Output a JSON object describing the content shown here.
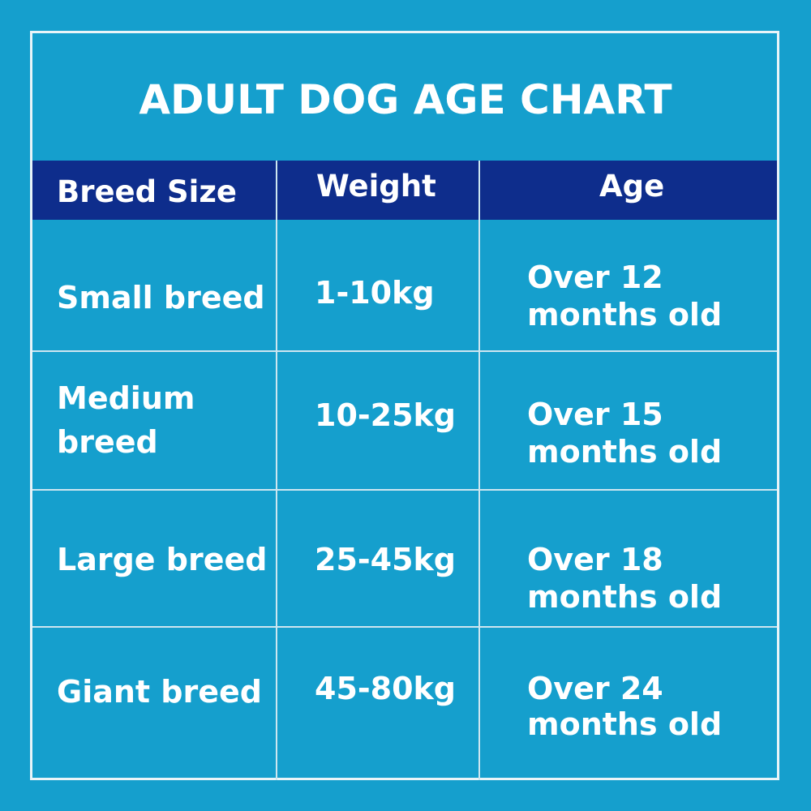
{
  "chart_data": {
    "type": "table",
    "title": "ADULT DOG AGE CHART",
    "columns": [
      "Breed Size",
      "Weight",
      "Age"
    ],
    "rows": [
      {
        "size_lines": [
          "Small breed"
        ],
        "weight": "1-10kg",
        "age_lines": [
          "Over 12",
          "months old"
        ]
      },
      {
        "size_lines": [
          "Medium",
          "breed"
        ],
        "weight": "10-25kg",
        "age_lines": [
          "Over 15",
          "months old"
        ]
      },
      {
        "size_lines": [
          "Large breed"
        ],
        "weight": "25-45kg",
        "age_lines": [
          "Over 18",
          "months old"
        ]
      },
      {
        "size_lines": [
          "Giant breed"
        ],
        "weight": "45-80kg",
        "age_lines": [
          "Over 24",
          "months old"
        ]
      }
    ]
  },
  "colors": {
    "background": "#159fcd",
    "header_background": "#0e2d8c",
    "text": "#ffffff",
    "rule": "#cde6f0"
  }
}
